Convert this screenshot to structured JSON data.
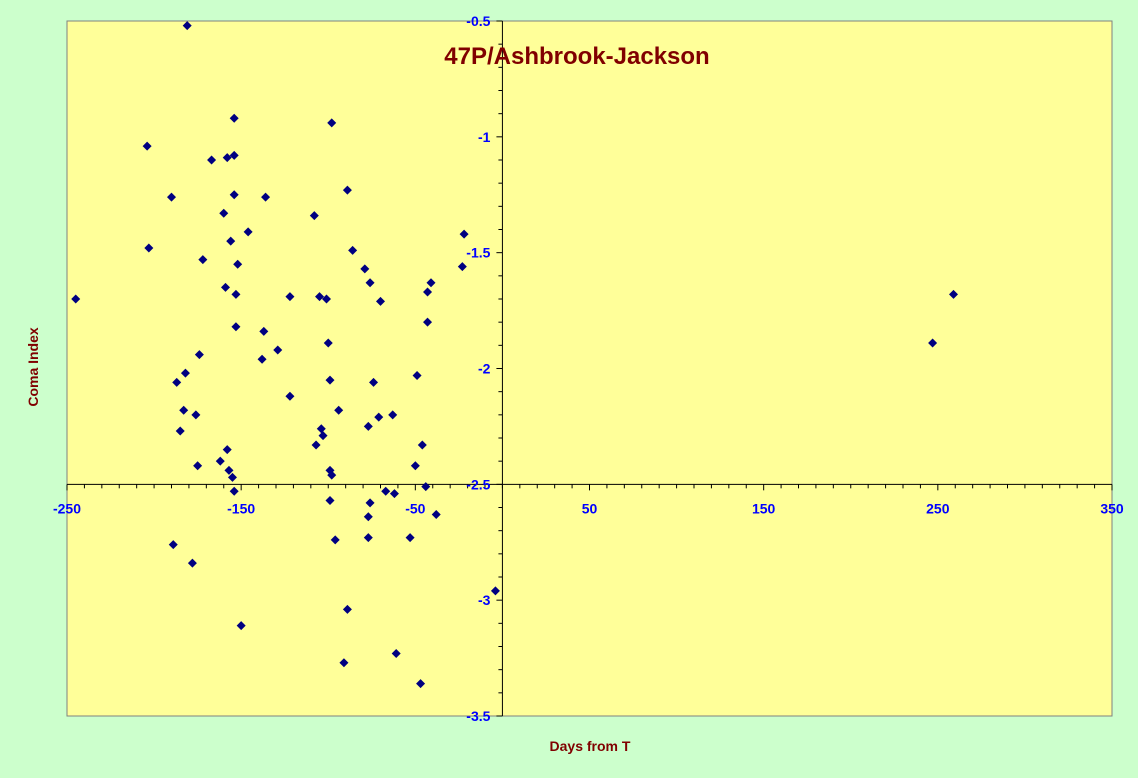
{
  "colors": {
    "chart_background": "#CCFFCC",
    "plot_background": "#FFFF99",
    "marker": "#000080",
    "axis_text": "#0000FF",
    "title_text": "#800000"
  },
  "chart_data": {
    "type": "scatter",
    "title": "47P/Ashbrook-Jackson",
    "xlabel": "Days from T",
    "ylabel": "Coma Index",
    "xlim": [
      -250,
      350
    ],
    "ylim": [
      -3.5,
      -0.5
    ],
    "y_reversed": true,
    "x_ticks": [
      "-250",
      "-150",
      "-50",
      "50",
      "150",
      "250",
      "350"
    ],
    "y_ticks": [
      "-0.5",
      "-1",
      "-1.5",
      "-2",
      "-2.5",
      "-3",
      "-3.5"
    ],
    "grid": false,
    "legend": "none",
    "marker": "diamond",
    "points": [
      [
        -245,
        -1.7
      ],
      [
        -181,
        -0.52
      ],
      [
        -204,
        -1.04
      ],
      [
        -203,
        -1.48
      ],
      [
        -190,
        -1.26
      ],
      [
        -187,
        -2.06
      ],
      [
        -185,
        -2.27
      ],
      [
        -183,
        -2.18
      ],
      [
        -182,
        -2.02
      ],
      [
        -178,
        -2.84
      ],
      [
        -176,
        -2.2
      ],
      [
        -175,
        -2.42
      ],
      [
        -174,
        -1.94
      ],
      [
        -172,
        -1.53
      ],
      [
        -189,
        -2.76
      ],
      [
        -167,
        -1.1
      ],
      [
        -162,
        -2.4
      ],
      [
        -160,
        -1.33
      ],
      [
        -159,
        -1.65
      ],
      [
        -158,
        -2.35
      ],
      [
        -158,
        -1.09
      ],
      [
        -157,
        -2.44
      ],
      [
        -156,
        -1.45
      ],
      [
        -155,
        -2.47
      ],
      [
        -154,
        -2.53
      ],
      [
        -154,
        -1.08
      ],
      [
        -154,
        -0.92
      ],
      [
        -154,
        -1.25
      ],
      [
        -153,
        -1.68
      ],
      [
        -153,
        -1.82
      ],
      [
        -152,
        -1.55
      ],
      [
        -150,
        -3.11
      ],
      [
        -146,
        -1.41
      ],
      [
        -138,
        -1.96
      ],
      [
        -137,
        -1.84
      ],
      [
        -136,
        -1.26
      ],
      [
        -129,
        -1.92
      ],
      [
        -122,
        -1.69
      ],
      [
        -122,
        -2.12
      ],
      [
        -108,
        -1.34
      ],
      [
        -107,
        -2.33
      ],
      [
        -105,
        -1.69
      ],
      [
        -104,
        -2.26
      ],
      [
        -103,
        -2.29
      ],
      [
        -101,
        -1.7
      ],
      [
        -100,
        -1.89
      ],
      [
        -99,
        -2.05
      ],
      [
        -99,
        -2.44
      ],
      [
        -98,
        -2.46
      ],
      [
        -99,
        -2.57
      ],
      [
        -98,
        -0.94
      ],
      [
        -96,
        -2.74
      ],
      [
        -94,
        -2.18
      ],
      [
        -91,
        -3.27
      ],
      [
        -89,
        -3.04
      ],
      [
        -89,
        -1.23
      ],
      [
        -86,
        -1.49
      ],
      [
        -79,
        -1.57
      ],
      [
        -77,
        -2.25
      ],
      [
        -77,
        -2.64
      ],
      [
        -77,
        -2.73
      ],
      [
        -76,
        -1.63
      ],
      [
        -76,
        -2.58
      ],
      [
        -74,
        -2.06
      ],
      [
        -71,
        -2.21
      ],
      [
        -70,
        -1.71
      ],
      [
        -67,
        -2.53
      ],
      [
        -63,
        -2.2
      ],
      [
        -62,
        -2.54
      ],
      [
        -61,
        -3.23
      ],
      [
        -53,
        -2.73
      ],
      [
        -50,
        -2.42
      ],
      [
        -49,
        -2.03
      ],
      [
        -47,
        -3.36
      ],
      [
        -46,
        -2.33
      ],
      [
        -44,
        -2.51
      ],
      [
        -43,
        -1.67
      ],
      [
        -43,
        -1.8
      ],
      [
        -41,
        -1.63
      ],
      [
        -38,
        -2.63
      ],
      [
        -23,
        -1.56
      ],
      [
        -22,
        -1.42
      ],
      [
        -4,
        -2.96
      ],
      [
        247,
        -1.89
      ],
      [
        259,
        -1.68
      ]
    ]
  }
}
